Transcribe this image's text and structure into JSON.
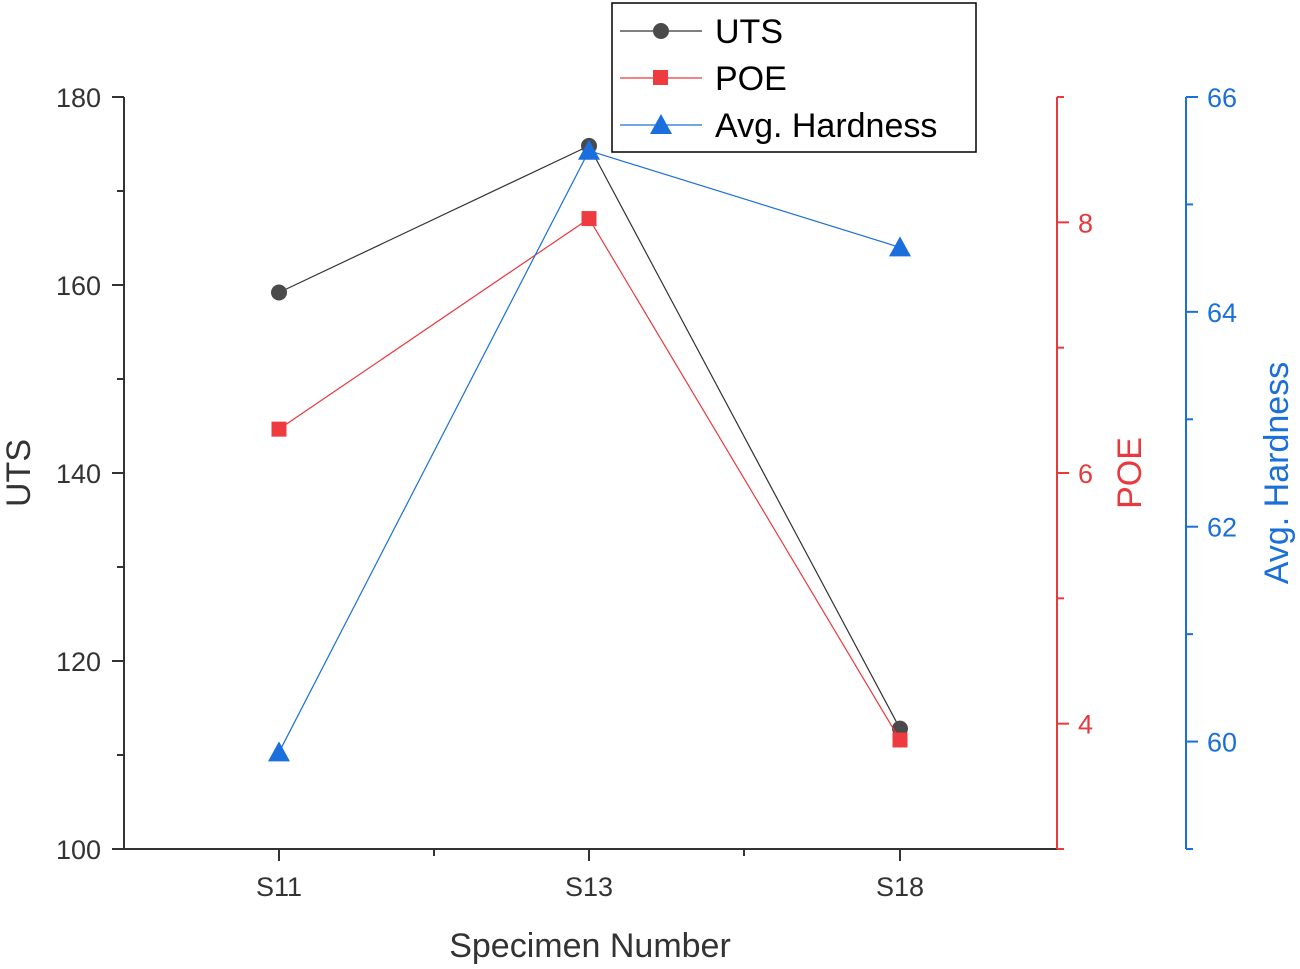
{
  "chart_data": {
    "type": "line",
    "title": "",
    "xlabel": "Specimen Number",
    "categories": [
      "S11",
      "S13",
      "S18"
    ],
    "series": [
      {
        "name": "UTS",
        "axis": "left",
        "ylabel": "UTS",
        "values": [
          159.2,
          174.8,
          112.8
        ],
        "color": "#333333",
        "marker": "circle",
        "marker_color": "#4a4a4a"
      },
      {
        "name": "POE",
        "axis": "right1",
        "ylabel": "POE",
        "values": [
          6.35,
          8.03,
          3.87
        ],
        "color": "#e8393d",
        "marker": "square",
        "marker_color": "#ee3b3f"
      },
      {
        "name": "Avg. Hardness",
        "axis": "right2",
        "ylabel": "Avg. Hardness",
        "values": [
          59.9,
          65.5,
          64.6
        ],
        "color": "#1a6fd9",
        "marker": "triangle",
        "marker_color": "#1b6fdc"
      }
    ],
    "axes": {
      "left": {
        "label": "UTS",
        "range": [
          100,
          180
        ],
        "major_ticks": [
          100,
          120,
          140,
          160,
          180
        ],
        "tick_labels": [
          "100",
          "120",
          "140",
          "160",
          "180"
        ],
        "minor_ticks": [
          110,
          130,
          150,
          170
        ],
        "color": "#333333"
      },
      "right1": {
        "label": "POE",
        "range": [
          3,
          9
        ],
        "major_ticks": [
          4,
          6,
          8
        ],
        "tick_labels": [
          "4",
          "6",
          "8"
        ],
        "minor_ticks": [
          3,
          5,
          7,
          9
        ],
        "color": "#e8393d"
      },
      "right2": {
        "label": "Avg. Hardness",
        "range": [
          59,
          66
        ],
        "major_ticks": [
          60,
          62,
          64,
          66
        ],
        "tick_labels": [
          "60",
          "62",
          "64",
          "66"
        ],
        "minor_ticks": [
          59,
          61,
          63,
          65
        ],
        "color": "#1a6fd9"
      },
      "x_minor_ticks": [
        0.5,
        1.5
      ]
    },
    "legend": {
      "position": "top-center",
      "entries": [
        "UTS",
        "POE",
        "Avg. Hardness"
      ]
    },
    "grid": false
  }
}
